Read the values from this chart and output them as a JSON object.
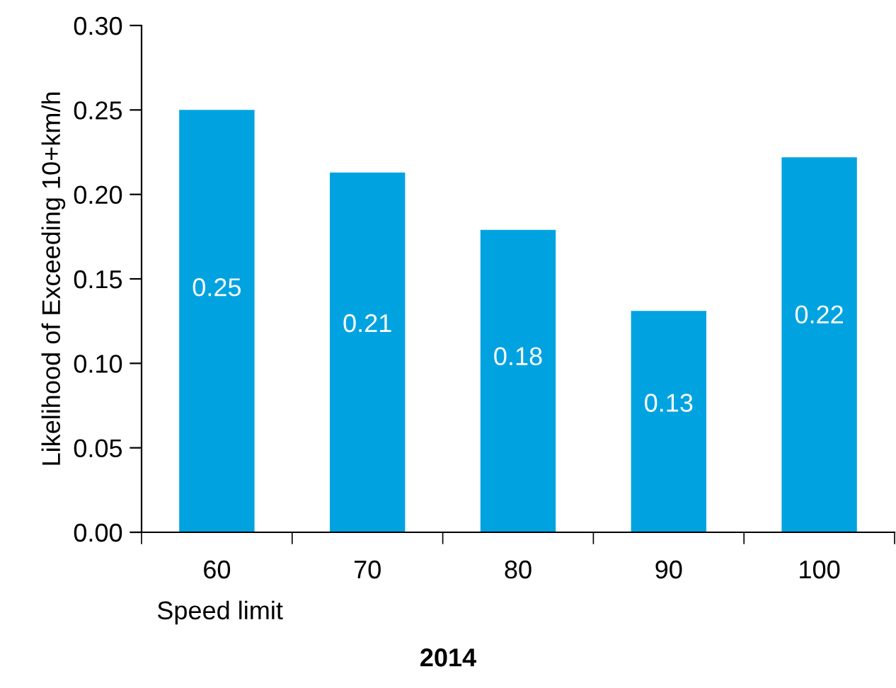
{
  "chart_data": {
    "type": "bar",
    "title": "2014",
    "xlabel": "Speed limit",
    "ylabel": "Likelihood of Exceeding 10+km/h",
    "categories": [
      "60",
      "70",
      "80",
      "90",
      "100"
    ],
    "values": [
      0.25,
      0.213,
      0.179,
      0.131,
      0.222
    ],
    "value_labels": [
      "0.25",
      "0.21",
      "0.18",
      "0.13",
      "0.22"
    ],
    "color": "#00a3e0",
    "ylim": [
      0,
      0.3
    ],
    "yticks": [
      {
        "value": 0,
        "label": "0.00"
      },
      {
        "value": 0.05,
        "label": "0.05"
      },
      {
        "value": 0.1,
        "label": "0.10"
      },
      {
        "value": 0.15,
        "label": "0.15"
      },
      {
        "value": 0.2,
        "label": "0.20"
      },
      {
        "value": 0.25,
        "label": "0.25"
      },
      {
        "value": 0.3,
        "label": "0.30"
      }
    ],
    "grid": false,
    "legend": false
  }
}
